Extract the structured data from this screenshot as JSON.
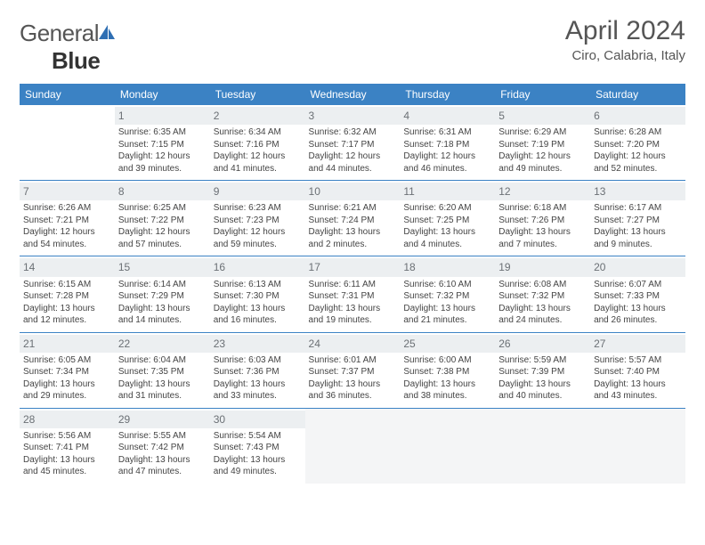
{
  "logo": {
    "word1": "General",
    "word2": "Blue",
    "icon_color": "#2f6fb3"
  },
  "title": "April 2024",
  "location": "Ciro, Calabria, Italy",
  "colors": {
    "header_bg": "#3b82c4",
    "border": "#3b82c4",
    "daynum_bg": "#eceff1"
  },
  "weekdays": [
    "Sunday",
    "Monday",
    "Tuesday",
    "Wednesday",
    "Thursday",
    "Friday",
    "Saturday"
  ],
  "start_offset": 1,
  "days": [
    {
      "n": 1,
      "sr": "6:35 AM",
      "ss": "7:15 PM",
      "dl": "12 hours and 39 minutes."
    },
    {
      "n": 2,
      "sr": "6:34 AM",
      "ss": "7:16 PM",
      "dl": "12 hours and 41 minutes."
    },
    {
      "n": 3,
      "sr": "6:32 AM",
      "ss": "7:17 PM",
      "dl": "12 hours and 44 minutes."
    },
    {
      "n": 4,
      "sr": "6:31 AM",
      "ss": "7:18 PM",
      "dl": "12 hours and 46 minutes."
    },
    {
      "n": 5,
      "sr": "6:29 AM",
      "ss": "7:19 PM",
      "dl": "12 hours and 49 minutes."
    },
    {
      "n": 6,
      "sr": "6:28 AM",
      "ss": "7:20 PM",
      "dl": "12 hours and 52 minutes."
    },
    {
      "n": 7,
      "sr": "6:26 AM",
      "ss": "7:21 PM",
      "dl": "12 hours and 54 minutes."
    },
    {
      "n": 8,
      "sr": "6:25 AM",
      "ss": "7:22 PM",
      "dl": "12 hours and 57 minutes."
    },
    {
      "n": 9,
      "sr": "6:23 AM",
      "ss": "7:23 PM",
      "dl": "12 hours and 59 minutes."
    },
    {
      "n": 10,
      "sr": "6:21 AM",
      "ss": "7:24 PM",
      "dl": "13 hours and 2 minutes."
    },
    {
      "n": 11,
      "sr": "6:20 AM",
      "ss": "7:25 PM",
      "dl": "13 hours and 4 minutes."
    },
    {
      "n": 12,
      "sr": "6:18 AM",
      "ss": "7:26 PM",
      "dl": "13 hours and 7 minutes."
    },
    {
      "n": 13,
      "sr": "6:17 AM",
      "ss": "7:27 PM",
      "dl": "13 hours and 9 minutes."
    },
    {
      "n": 14,
      "sr": "6:15 AM",
      "ss": "7:28 PM",
      "dl": "13 hours and 12 minutes."
    },
    {
      "n": 15,
      "sr": "6:14 AM",
      "ss": "7:29 PM",
      "dl": "13 hours and 14 minutes."
    },
    {
      "n": 16,
      "sr": "6:13 AM",
      "ss": "7:30 PM",
      "dl": "13 hours and 16 minutes."
    },
    {
      "n": 17,
      "sr": "6:11 AM",
      "ss": "7:31 PM",
      "dl": "13 hours and 19 minutes."
    },
    {
      "n": 18,
      "sr": "6:10 AM",
      "ss": "7:32 PM",
      "dl": "13 hours and 21 minutes."
    },
    {
      "n": 19,
      "sr": "6:08 AM",
      "ss": "7:32 PM",
      "dl": "13 hours and 24 minutes."
    },
    {
      "n": 20,
      "sr": "6:07 AM",
      "ss": "7:33 PM",
      "dl": "13 hours and 26 minutes."
    },
    {
      "n": 21,
      "sr": "6:05 AM",
      "ss": "7:34 PM",
      "dl": "13 hours and 29 minutes."
    },
    {
      "n": 22,
      "sr": "6:04 AM",
      "ss": "7:35 PM",
      "dl": "13 hours and 31 minutes."
    },
    {
      "n": 23,
      "sr": "6:03 AM",
      "ss": "7:36 PM",
      "dl": "13 hours and 33 minutes."
    },
    {
      "n": 24,
      "sr": "6:01 AM",
      "ss": "7:37 PM",
      "dl": "13 hours and 36 minutes."
    },
    {
      "n": 25,
      "sr": "6:00 AM",
      "ss": "7:38 PM",
      "dl": "13 hours and 38 minutes."
    },
    {
      "n": 26,
      "sr": "5:59 AM",
      "ss": "7:39 PM",
      "dl": "13 hours and 40 minutes."
    },
    {
      "n": 27,
      "sr": "5:57 AM",
      "ss": "7:40 PM",
      "dl": "13 hours and 43 minutes."
    },
    {
      "n": 28,
      "sr": "5:56 AM",
      "ss": "7:41 PM",
      "dl": "13 hours and 45 minutes."
    },
    {
      "n": 29,
      "sr": "5:55 AM",
      "ss": "7:42 PM",
      "dl": "13 hours and 47 minutes."
    },
    {
      "n": 30,
      "sr": "5:54 AM",
      "ss": "7:43 PM",
      "dl": "13 hours and 49 minutes."
    }
  ],
  "labels": {
    "sunrise": "Sunrise:",
    "sunset": "Sunset:",
    "daylight": "Daylight:"
  }
}
